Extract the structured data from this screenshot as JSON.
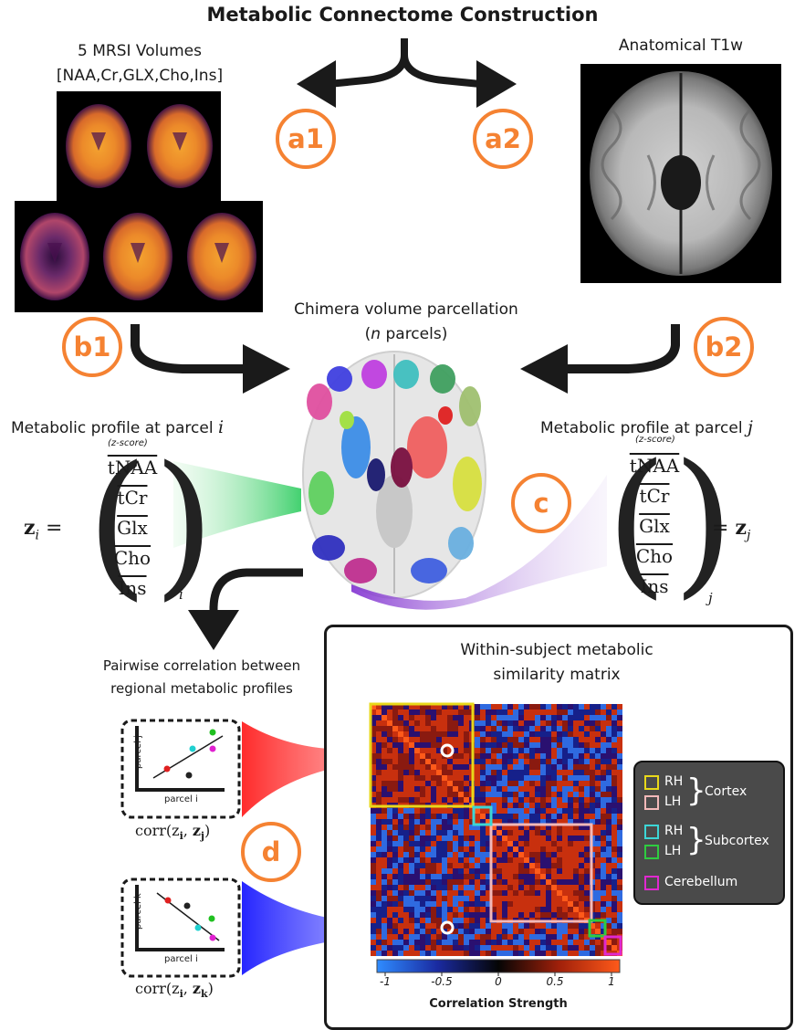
{
  "title": "Metabolic Connectome Construction",
  "mrsi": {
    "title_line1": "5 MRSI Volumes",
    "title_line2": "[NAA,Cr,GLX,Cho,Ins]"
  },
  "anatomical": {
    "title": "Anatomical T1w"
  },
  "parcellation": {
    "title_line1": "Chimera volume parcellation",
    "title_line2_n": "n",
    "title_line2_rest": " parcels)"
  },
  "steps": {
    "a1": "a1",
    "a2": "a2",
    "b1": "b1",
    "b2": "b2",
    "c": "c",
    "d": "d"
  },
  "profile_i": {
    "title": "Metabolic profile at parcel ",
    "var": "i",
    "zscore": "(z-score)",
    "lhs": "z",
    "lhs_sub": "i",
    "eq": " =",
    "sub": "i"
  },
  "profile_j": {
    "title": "Metabolic profile at parcel ",
    "var": "j",
    "zscore": "(z-score)",
    "rhs_eq": "= ",
    "rhs": "z",
    "rhs_sub": "j",
    "sub": "j"
  },
  "metabolites": [
    "tNAA",
    "tCr",
    "Glx",
    "Cho",
    "Ins"
  ],
  "pairwise": {
    "line1": "Pairwise correlation between",
    "line2": "regional metabolic profiles"
  },
  "scatter1": {
    "ylabel": "parcel j",
    "xlabel": "parcel i",
    "caption": "corr(z",
    "caption_i": "i",
    "caption_j": "j"
  },
  "scatter2": {
    "ylabel": "parcel k",
    "xlabel": "parcel i",
    "caption": "corr(z",
    "caption_i": "i",
    "caption_k": "k"
  },
  "matrix": {
    "title_line1": "Within-subject metabolic",
    "title_line2": "similarity matrix",
    "colorbar_ticks": [
      "-1",
      "-0.5",
      "0",
      "0.5",
      "1"
    ],
    "colorbar_label": "Correlation Strength",
    "colors": {
      "cortex_rh": "#e8d81a",
      "cortex_lh": "#f2b8b8",
      "subcortex_rh": "#3cd6d6",
      "subcortex_lh": "#2ecc40",
      "cerebellum": "#e028d0"
    }
  },
  "legend": {
    "rh": "RH",
    "lh": "LH",
    "cortex": "Cortex",
    "rh2": "RH",
    "lh2": "LH",
    "subcortex": "Subcortex",
    "cerebellum": "Cerebellum"
  },
  "icons": [
    "left-arrow-icon",
    "right-arrow-icon",
    "curved-arrow-icon",
    "down-arrow-icon"
  ]
}
